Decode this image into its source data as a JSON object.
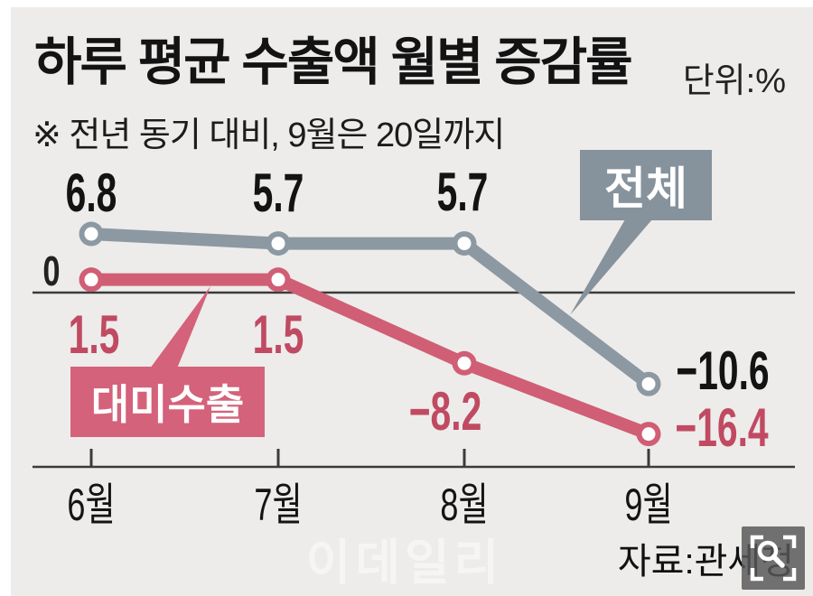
{
  "header": {
    "title": "하루 평균 수출액 월별 증감률",
    "unit": "단위:%",
    "note": "※ 전년 동기 대비, 9월은 20일까지"
  },
  "chart_data": {
    "type": "line",
    "categories": [
      "6월",
      "7월",
      "8월",
      "9월"
    ],
    "series": [
      {
        "name": "전체",
        "values": [
          6.8,
          5.7,
          5.7,
          -10.6
        ],
        "color": "#8c98a2",
        "label_color": "#131313"
      },
      {
        "name": "대미수출",
        "values": [
          1.5,
          1.5,
          -8.2,
          -16.4
        ],
        "color": "#d05e75",
        "label_color": "#c14a63"
      }
    ],
    "title": "하루 평균 수출액 월별 증감률",
    "xlabel": "",
    "ylabel": "",
    "unit": "%",
    "baseline_value": 0,
    "baseline_label": "0",
    "ylim": [
      -18,
      8
    ],
    "grid": false,
    "legend_position": "inline-callout-boxes",
    "marker": "open-circle",
    "note": "※ 전년 동기 대비, 9월은 20일까지"
  },
  "annotations": {
    "zero_label": "0"
  },
  "footer": {
    "watermark": "이데일리",
    "source": "자료:관세청",
    "zoom_icon": "magnifier-icon"
  },
  "colors": {
    "background": "#edecea",
    "total_series": "#8c98a2",
    "total_box": "#86929c",
    "us_series": "#d05e75",
    "us_box": "#d4627a",
    "us_label_text": "#c14a63",
    "black_text": "#131313",
    "axis": "#3b3b3b",
    "watermark": "rgba(255,255,255,0.48)"
  }
}
